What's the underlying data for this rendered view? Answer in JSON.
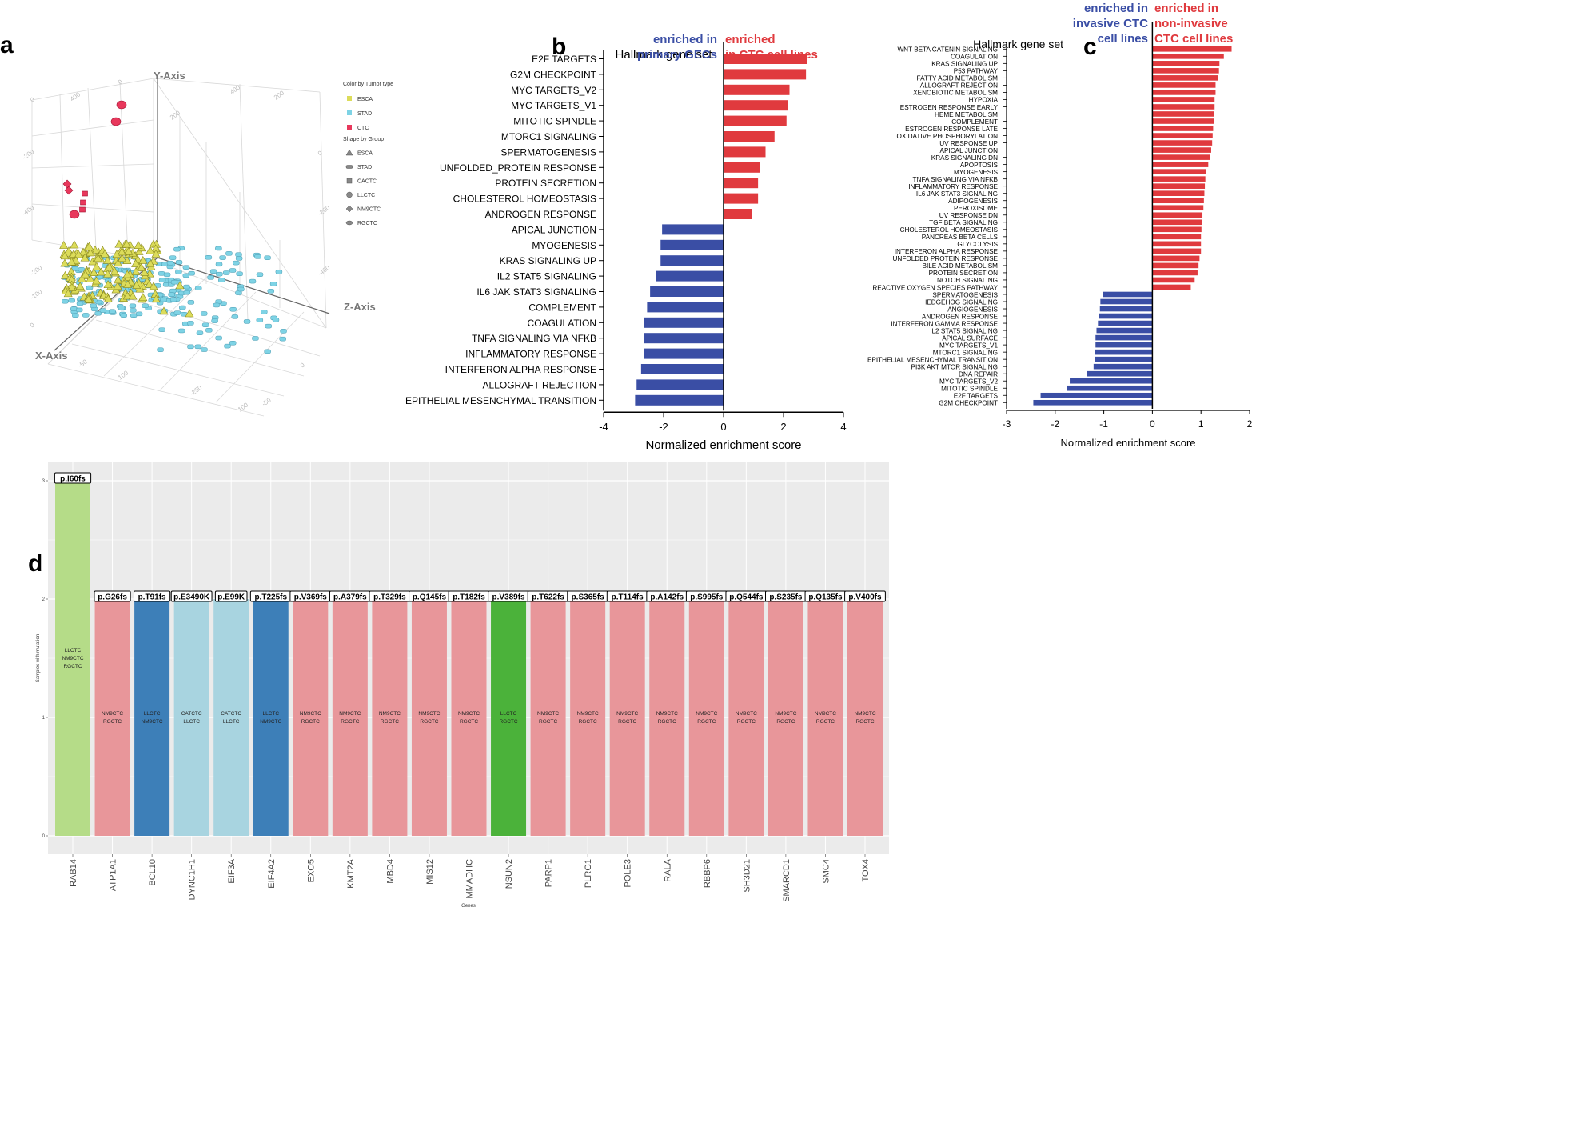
{
  "panels": {
    "a": "a",
    "b": "b",
    "c": "c",
    "d": "d"
  },
  "colors": {
    "red": "#e03a3e",
    "blue": "#3a4ea5",
    "esca": "#dcdc5a",
    "stad": "#7ed3e5",
    "ctc": "#e8385c",
    "nm9": "#e8969a",
    "llctc_nm9": "#3d7fb8",
    "catctc": "#a8d4e0",
    "nsun": "#4bb23a",
    "rab": "#b5dc88",
    "d_bg": "#ebebeb"
  },
  "chart_data": [
    {
      "id": "a",
      "type": "scatter",
      "title": "",
      "axes": {
        "x": "X-Axis",
        "y": "Y-Axis",
        "z": "Z-Axis"
      },
      "tick_labels": [
        "0",
        "-200",
        "-400",
        "0",
        "200",
        "400",
        "400",
        "200",
        "0",
        "-200",
        "-400",
        "-200",
        "-100",
        "0",
        "-50",
        "100",
        "-250",
        "100",
        "-50",
        "0"
      ],
      "legend": {
        "color_title": "Color by Tumor type",
        "colors": [
          "ESCA",
          "STAD",
          "CTC"
        ],
        "shape_title": "Shape by Group",
        "shapes": [
          "ESCA",
          "STAD",
          "CACTC",
          "LLCTC",
          "NM9CTC",
          "RGCTC"
        ]
      },
      "groups": [
        {
          "name": "ESCA",
          "shape": "triangle",
          "count": 150
        },
        {
          "name": "STAD",
          "shape": "rounded-rect",
          "count": 230
        },
        {
          "name": "CTC",
          "shape": "mixed",
          "count": 8
        }
      ]
    },
    {
      "id": "b",
      "type": "bar",
      "orientation": "horizontal",
      "title": "Hallmark gene set",
      "header_left": [
        "enriched in",
        "primary GECs"
      ],
      "header_right": [
        "enriched",
        "in CTC cell lines"
      ],
      "xlabel": "Normalized enrichment score",
      "xlim": [
        -4,
        4
      ],
      "xticks": [
        "-4",
        "-2",
        "0",
        "2",
        "4"
      ],
      "categories": [
        "E2F TARGETS",
        "G2M CHECKPOINT",
        "MYC TARGETS_V2",
        "MYC TARGETS_V1",
        "MITOTIC SPINDLE",
        "MTORC1 SIGNALING",
        "SPERMATOGENESIS",
        "UNFOLDED_PROTEIN RESPONSE",
        "PROTEIN SECRETION",
        "CHOLESTEROL HOMEOSTASIS",
        "ANDROGEN RESPONSE",
        "APICAL JUNCTION",
        "MYOGENESIS",
        "KRAS SIGNALING UP",
        "IL2 STAT5 SIGNALING",
        "IL6 JAK STAT3 SIGNALING",
        "COMPLEMENT",
        "COAGULATION",
        "TNFA SIGNALING VIA NFKB",
        "INFLAMMATORY RESPONSE",
        "INTERFERON ALPHA RESPONSE",
        "ALLOGRAFT REJECTION",
        "EPITHELIAL MESENCHYMAL TRANSITION"
      ],
      "values": [
        2.8,
        2.75,
        2.2,
        2.15,
        2.1,
        1.7,
        1.4,
        1.2,
        1.15,
        1.15,
        0.95,
        -2.05,
        -2.1,
        -2.1,
        -2.25,
        -2.45,
        -2.55,
        -2.65,
        -2.65,
        -2.65,
        -2.75,
        -2.9,
        -2.95
      ]
    },
    {
      "id": "c",
      "type": "bar",
      "orientation": "horizontal",
      "title": "Hallmark gene set",
      "header_left": [
        "enriched in",
        "invasive CTC",
        "cell lines"
      ],
      "header_right": [
        "enriched in",
        "non-invasive",
        "CTC cell lines"
      ],
      "xlabel": "Normalized enrichment score",
      "xlim": [
        -3,
        2
      ],
      "xticks": [
        "-3",
        "-2",
        "-1",
        "0",
        "1",
        "2"
      ],
      "categories": [
        "WNT BETA CATENIN SIGNALING",
        "COAGULATION",
        "KRAS SIGNALING UP",
        "P53 PATHWAY",
        "FATTY ACID METABOLISM",
        "ALLOGRAFT REJECTION",
        "XENOBIOTIC METABOLISM",
        "HYPOXIA",
        "ESTROGEN RESPONSE EARLY",
        "HEME METABOLISM",
        "COMPLEMENT",
        "ESTROGEN RESPONSE LATE",
        "OXIDATIVE PHOSPHORYLATION",
        "UV RESPONSE UP",
        "APICAL JUNCTION",
        "KRAS SIGNALING DN",
        "APOPTOSIS",
        "MYOGENESIS",
        "TNFA SIGNALING VIA NFKB",
        "INFLAMMATORY RESPONSE",
        "IL6 JAK STAT3 SIGNALING",
        "ADIPOGENESIS",
        "PEROXISOME",
        "UV RESPONSE DN",
        "TGF BETA SIGNALING",
        "CHOLESTEROL HOMEOSTASIS",
        "PANCREAS BETA CELLS",
        "GLYCOLYSIS",
        "INTERFERON ALPHA RESPONSE",
        "UNFOLDED PROTEIN RESPONSE",
        "BILE ACID METABOLISM",
        "PROTEIN SECRETION",
        "NOTCH SIGNALING",
        "REACTIVE OXYGEN SPECIES PATHWAY",
        "SPERMATOGENESIS",
        "HEDGEHOG SIGNALING",
        "ANGIOGENESIS",
        "ANDROGEN RESPONSE",
        "INTERFERON GAMMA RESPONSE",
        "IL2 STAT5 SIGNALING",
        "APICAL SURFACE",
        "MYC TARGETS_V1",
        "MTORC1 SIGNALING",
        "EPITHELIAL MESENCHYMAL TRANSITION",
        "PI3K AKT MTOR SIGNALING",
        "DNA REPAIR",
        "MYC TARGETS_V2",
        "MITOTIC SPINDLE",
        "E2F TARGETS",
        "G2M CHECKPOINT"
      ],
      "values": [
        1.63,
        1.47,
        1.38,
        1.37,
        1.35,
        1.3,
        1.3,
        1.28,
        1.28,
        1.27,
        1.26,
        1.25,
        1.24,
        1.23,
        1.21,
        1.19,
        1.15,
        1.1,
        1.09,
        1.08,
        1.07,
        1.06,
        1.05,
        1.03,
        1.02,
        1.01,
        1.0,
        1.0,
        1.0,
        0.97,
        0.95,
        0.93,
        0.87,
        0.79,
        -1.02,
        -1.07,
        -1.08,
        -1.1,
        -1.12,
        -1.15,
        -1.17,
        -1.17,
        -1.18,
        -1.19,
        -1.21,
        -1.35,
        -1.7,
        -1.75,
        -2.3,
        -2.45
      ]
    },
    {
      "id": "d",
      "type": "bar",
      "title": "",
      "xlabel": "Genes",
      "ylabel": "Samples with mutation",
      "ylim": [
        0,
        3
      ],
      "yticks": [
        "0",
        "1",
        "2",
        "3"
      ],
      "categories": [
        "RAB14",
        "ATP1A1",
        "BCL10",
        "DYNC1H1",
        "EIF3A",
        "EIF4A2",
        "EXO5",
        "KMT2A",
        "MBD4",
        "MIS12",
        "MMADHC",
        "NSUN2",
        "PARP1",
        "PLRG1",
        "POLE3",
        "RALA",
        "RBBP6",
        "SH3D21",
        "SMARCD1",
        "SMC4",
        "TOX4"
      ],
      "values": [
        3,
        2,
        2,
        2,
        2,
        2,
        2,
        2,
        2,
        2,
        2,
        2,
        2,
        2,
        2,
        2,
        2,
        2,
        2,
        2,
        2
      ],
      "mutations": [
        "p.I60fs",
        "p.G26fs",
        "p.T91fs",
        "p.E3490K",
        "p.E99K",
        "p.T225fs",
        "p.V369fs",
        "p.A379fs",
        "p.T329fs",
        "p.Q145fs",
        "p.T182fs",
        "p.V389fs",
        "p.T622fs",
        "p.S365fs",
        "p.T114fs",
        "p.A142fs",
        "p.S995fs",
        "p.Q544fs",
        "p.S235fs",
        "p.Q135fs",
        "p.V400fs"
      ],
      "samples": [
        [
          "LLCTC",
          "NM9CTC",
          "RGCTC"
        ],
        [
          "NM9CTC",
          "RGCTC"
        ],
        [
          "LLCTC",
          "NM9CTC"
        ],
        [
          "CATCTC",
          "LLCTC"
        ],
        [
          "CATCTC",
          "LLCTC"
        ],
        [
          "LLCTC",
          "NM9CTC"
        ],
        [
          "NM9CTC",
          "RGCTC"
        ],
        [
          "NM9CTC",
          "RGCTC"
        ],
        [
          "NM9CTC",
          "RGCTC"
        ],
        [
          "NM9CTC",
          "RGCTC"
        ],
        [
          "NM9CTC",
          "RGCTC"
        ],
        [
          "LLCTC",
          "RGCTC"
        ],
        [
          "NM9CTC",
          "RGCTC"
        ],
        [
          "NM9CTC",
          "RGCTC"
        ],
        [
          "NM9CTC",
          "RGCTC"
        ],
        [
          "NM9CTC",
          "RGCTC"
        ],
        [
          "NM9CTC",
          "RGCTC"
        ],
        [
          "NM9CTC",
          "RGCTC"
        ],
        [
          "NM9CTC",
          "RGCTC"
        ],
        [
          "NM9CTC",
          "RGCTC"
        ],
        [
          "NM9CTC",
          "RGCTC"
        ]
      ],
      "bar_colors": [
        "#b5dc88",
        "#e8969a",
        "#3d7fb8",
        "#a8d4e0",
        "#a8d4e0",
        "#3d7fb8",
        "#e8969a",
        "#e8969a",
        "#e8969a",
        "#e8969a",
        "#e8969a",
        "#4bb23a",
        "#e8969a",
        "#e8969a",
        "#e8969a",
        "#e8969a",
        "#e8969a",
        "#e8969a",
        "#e8969a",
        "#e8969a",
        "#e8969a"
      ]
    }
  ]
}
